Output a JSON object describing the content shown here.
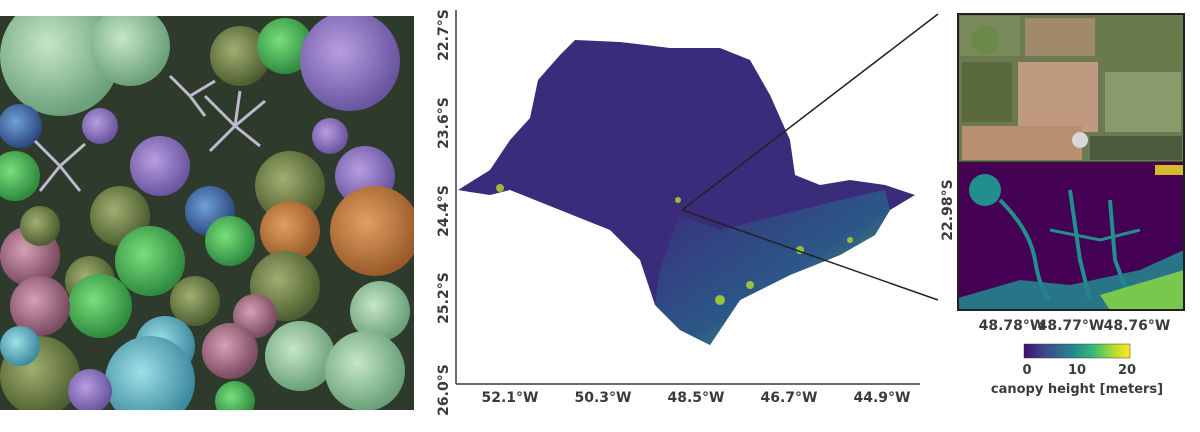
{
  "map": {
    "y_ticks": [
      "22.7°S",
      "23.6°S",
      "24.4°S",
      "25.2°S",
      "26.0°S"
    ],
    "x_ticks": [
      "52.1°W",
      "50.3°W",
      "48.5°W",
      "46.7°W",
      "44.9°W"
    ]
  },
  "inset": {
    "y_tick": "22.98°S",
    "x_ticks": [
      "48.78°W",
      "48.77°W",
      "48.76°W"
    ]
  },
  "colorbar": {
    "label": "canopy height [meters]",
    "ticks": [
      "0",
      "10",
      "20"
    ],
    "colors": [
      "#3b0f70",
      "#3e4a89",
      "#26828e",
      "#35b779",
      "#b5de2b",
      "#fde725"
    ]
  },
  "palette": {
    "low": "#440154",
    "mid": "#21908d",
    "high": "#fde725"
  }
}
